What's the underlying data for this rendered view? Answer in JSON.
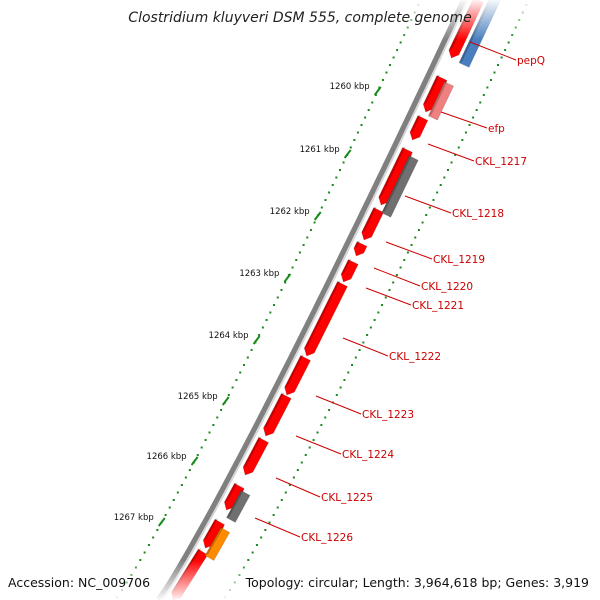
{
  "title": "Clostridium kluyveri DSM 555, complete genome",
  "footer": {
    "accession": "Accession: NC_009706",
    "summary": "Topology: circular; Length: 3,964,618 bp; Genes: 3,919"
  },
  "colors": {
    "gene_forward": "#ff0000",
    "gene_pseudo": "#f08080",
    "gene_gray": "#707070",
    "gene_blue": "#4a7fbf",
    "gene_orange": "#ff8c00",
    "gene_magenta": "#ff1493",
    "tick_green": "#1a8a1a",
    "label_red": "#cc0000",
    "backbone": "#808080"
  },
  "scale_ticks": [
    {
      "label": "1260 kbp"
    },
    {
      "label": "1261 kbp"
    },
    {
      "label": "1262 kbp"
    },
    {
      "label": "1263 kbp"
    },
    {
      "label": "1264 kbp"
    },
    {
      "label": "1265 kbp"
    },
    {
      "label": "1266 kbp"
    },
    {
      "label": "1267 kbp"
    }
  ],
  "gene_labels": [
    {
      "name": "pepQ"
    },
    {
      "name": "efp"
    },
    {
      "name": "CKL_1217"
    },
    {
      "name": "CKL_1218"
    },
    {
      "name": "CKL_1219"
    },
    {
      "name": "CKL_1220"
    },
    {
      "name": "CKL_1221"
    },
    {
      "name": "CKL_1222"
    },
    {
      "name": "CKL_1223"
    },
    {
      "name": "CKL_1224"
    },
    {
      "name": "CKL_1225"
    },
    {
      "name": "CKL_1226"
    }
  ]
}
